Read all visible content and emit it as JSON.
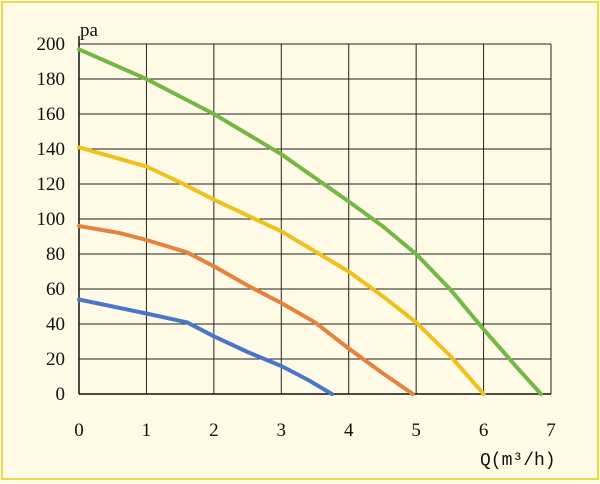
{
  "chart_data": {
    "type": "line",
    "title": "",
    "ylabel": "pa",
    "xlabel": "Q(m³/h)",
    "xlim": [
      0,
      7
    ],
    "ylim": [
      0,
      200
    ],
    "x_ticks": [
      "0",
      "1",
      "2",
      "3",
      "4",
      "5",
      "6",
      "7"
    ],
    "y_ticks": [
      "0",
      "20",
      "40",
      "60",
      "80",
      "100",
      "120",
      "140",
      "160",
      "180",
      "200"
    ],
    "grid": true,
    "legend": "none",
    "series": [
      {
        "color": "#72b943",
        "points": [
          [
            0,
            197
          ],
          [
            1,
            180
          ],
          [
            2,
            160
          ],
          [
            3,
            137
          ],
          [
            4,
            110
          ],
          [
            4.5,
            96
          ],
          [
            5,
            80
          ],
          [
            5.5,
            60
          ],
          [
            6,
            37
          ],
          [
            6.5,
            15
          ],
          [
            6.85,
            0
          ]
        ]
      },
      {
        "color": "#f0c01c",
        "points": [
          [
            0,
            141
          ],
          [
            1,
            130
          ],
          [
            1.5,
            121
          ],
          [
            2,
            111
          ],
          [
            3,
            93
          ],
          [
            4,
            70
          ],
          [
            4.5,
            56
          ],
          [
            5,
            41
          ],
          [
            5.5,
            22
          ],
          [
            6,
            0
          ]
        ]
      },
      {
        "color": "#e8813a",
        "points": [
          [
            0,
            96
          ],
          [
            0.6,
            92
          ],
          [
            1,
            88
          ],
          [
            1.6,
            81
          ],
          [
            2,
            73
          ],
          [
            2.5,
            62
          ],
          [
            3,
            52
          ],
          [
            3.5,
            41
          ],
          [
            4,
            26
          ],
          [
            4.5,
            12
          ],
          [
            4.95,
            0
          ]
        ]
      },
      {
        "color": "#4a76c9",
        "points": [
          [
            0,
            54
          ],
          [
            0.5,
            50
          ],
          [
            1,
            46
          ],
          [
            1.6,
            41
          ],
          [
            2,
            33
          ],
          [
            2.5,
            24
          ],
          [
            3,
            16
          ],
          [
            3.4,
            8
          ],
          [
            3.75,
            0
          ]
        ]
      }
    ]
  }
}
